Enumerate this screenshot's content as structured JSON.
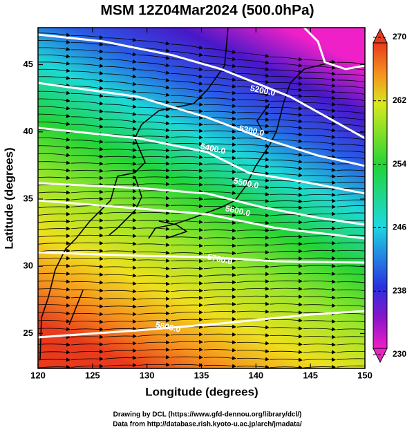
{
  "title": "MSM 12Z04Mar2024 (500.0hPa)",
  "x_axis": {
    "label": "Longitude (degrees)",
    "lim": [
      120,
      150
    ],
    "ticks": [
      120,
      125,
      130,
      135,
      140,
      145,
      150
    ]
  },
  "y_axis": {
    "label": "Latitude  (degrees)",
    "lim": [
      22.4,
      47.6
    ],
    "ticks": [
      25,
      30,
      35,
      40,
      45
    ]
  },
  "colorbar": {
    "lim": [
      230,
      270
    ],
    "ticks": [
      230,
      238,
      246,
      254,
      262,
      270
    ]
  },
  "contour_labels": [
    "5200.0",
    "5300.0",
    "5400.0",
    "5500.0",
    "5600.0",
    "5700.0",
    "5800.0"
  ],
  "footer": [
    "Drawing by DCL (https://www.gfd-dennou.org/library/dcl/)",
    "Data from http://database.rish.kyoto-u.ac.jp/arch/jmadata/"
  ]
}
